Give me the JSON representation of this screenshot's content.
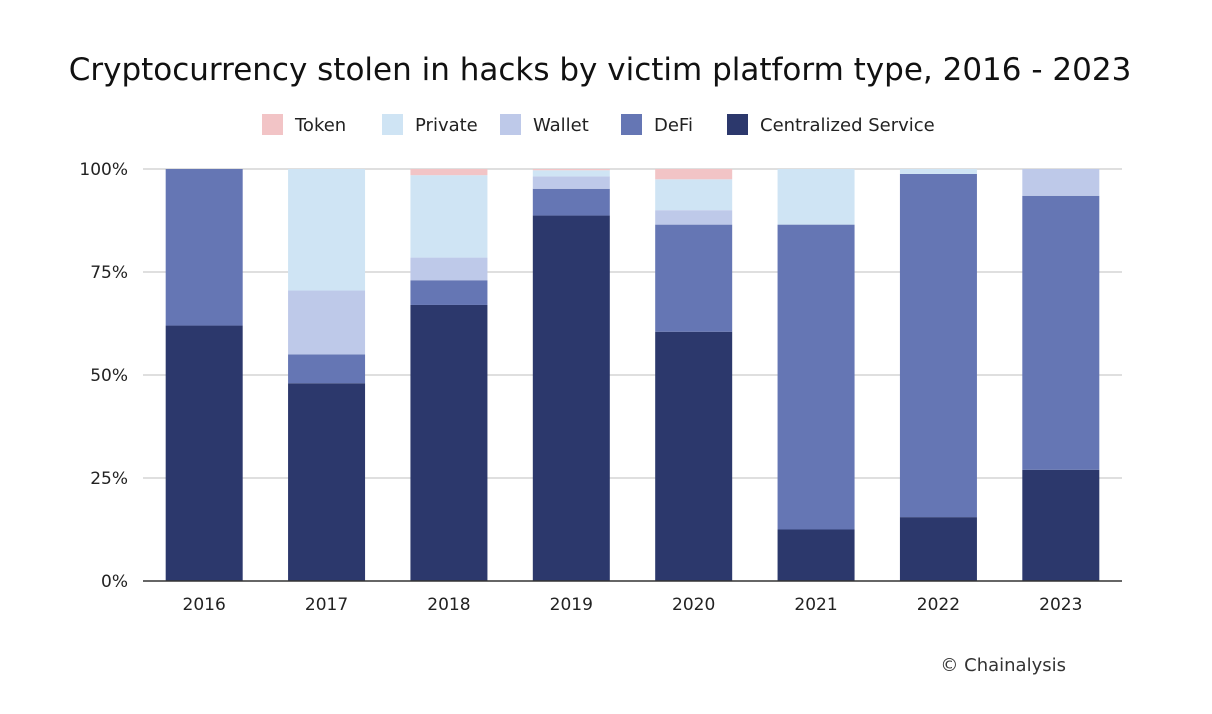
{
  "source": "© Chainalysis",
  "colors": {
    "Token": "#f2c4c6",
    "Private": "#cfe4f4",
    "Wallet": "#bec9e9",
    "DeFi": "#6576b4",
    "Centralized Service": "#2c386c",
    "grid": "#cccccc",
    "axis": "#333333"
  },
  "chart_data": {
    "type": "bar",
    "stacked": true,
    "title": "Cryptocurrency stolen in hacks by victim platform type, 2016 - 2023",
    "xlabel": "",
    "ylabel": "",
    "categories": [
      "2016",
      "2017",
      "2018",
      "2019",
      "2020",
      "2021",
      "2022",
      "2023"
    ],
    "yticks": [
      "0%",
      "25%",
      "50%",
      "75%",
      "100%"
    ],
    "ylim": [
      0,
      100
    ],
    "grid": true,
    "legend_position": "top",
    "legend": [
      "Token",
      "Private",
      "Wallet",
      "DeFi",
      "Centralized Service"
    ],
    "series": [
      {
        "name": "Centralized Service",
        "values": [
          62,
          48,
          67,
          88.7,
          60.5,
          12.5,
          15.5,
          27
        ]
      },
      {
        "name": "DeFi",
        "values": [
          38,
          7,
          6,
          6.5,
          26,
          74,
          83.3,
          66.5
        ]
      },
      {
        "name": "Wallet",
        "values": [
          0,
          15.5,
          5.5,
          3,
          3.5,
          0,
          0,
          6.5
        ]
      },
      {
        "name": "Private",
        "values": [
          0,
          29.5,
          20,
          1.5,
          7.5,
          13.5,
          1.2,
          0
        ]
      },
      {
        "name": "Token",
        "values": [
          0,
          0,
          1.5,
          0.3,
          2.5,
          0,
          0,
          0
        ]
      }
    ]
  }
}
